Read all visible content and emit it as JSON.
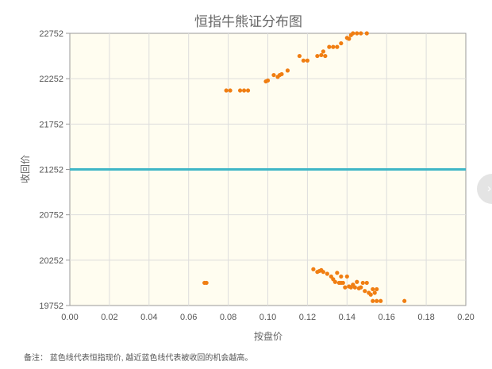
{
  "chart_data": {
    "type": "scatter",
    "title": "恒指牛熊证分布图",
    "xlabel": "按盘价",
    "ylabel": "收回价",
    "xlim": [
      0,
      0.2
    ],
    "ylim": [
      19752,
      22752
    ],
    "x_ticks": [
      "0.00",
      "0.02",
      "0.04",
      "0.06",
      "0.08",
      "0.10",
      "0.12",
      "0.14",
      "0.16",
      "0.18",
      "0.20"
    ],
    "y_ticks": [
      "19752",
      "20252",
      "20752",
      "21252",
      "21752",
      "22252",
      "22752"
    ],
    "grid": true,
    "reference_line": {
      "y": 21252,
      "color": "#3fb6c6"
    },
    "point_color": "#f07e12",
    "points": [
      [
        0.079,
        22122
      ],
      [
        0.081,
        22122
      ],
      [
        0.086,
        22122
      ],
      [
        0.088,
        22122
      ],
      [
        0.09,
        22122
      ],
      [
        0.099,
        22222
      ],
      [
        0.1,
        22232
      ],
      [
        0.103,
        22292
      ],
      [
        0.105,
        22272
      ],
      [
        0.106,
        22292
      ],
      [
        0.107,
        22302
      ],
      [
        0.11,
        22342
      ],
      [
        0.116,
        22502
      ],
      [
        0.118,
        22452
      ],
      [
        0.12,
        22452
      ],
      [
        0.125,
        22502
      ],
      [
        0.127,
        22512
      ],
      [
        0.128,
        22552
      ],
      [
        0.129,
        22502
      ],
      [
        0.131,
        22602
      ],
      [
        0.133,
        22602
      ],
      [
        0.135,
        22602
      ],
      [
        0.137,
        22642
      ],
      [
        0.14,
        22702
      ],
      [
        0.141,
        22692
      ],
      [
        0.142,
        22732
      ],
      [
        0.143,
        22752
      ],
      [
        0.145,
        22752
      ],
      [
        0.147,
        22752
      ],
      [
        0.15,
        22752
      ],
      [
        0.068,
        20002
      ],
      [
        0.069,
        20002
      ],
      [
        0.123,
        20152
      ],
      [
        0.125,
        20122
      ],
      [
        0.126,
        20132
      ],
      [
        0.127,
        20142
      ],
      [
        0.128,
        20122
      ],
      [
        0.13,
        20102
      ],
      [
        0.132,
        20072
      ],
      [
        0.133,
        20042
      ],
      [
        0.134,
        20012
      ],
      [
        0.135,
        20112
      ],
      [
        0.136,
        20002
      ],
      [
        0.137,
        20072
      ],
      [
        0.137,
        20002
      ],
      [
        0.138,
        20002
      ],
      [
        0.139,
        19952
      ],
      [
        0.14,
        20072
      ],
      [
        0.141,
        19962
      ],
      [
        0.142,
        19952
      ],
      [
        0.143,
        19982
      ],
      [
        0.144,
        19952
      ],
      [
        0.145,
        20012
      ],
      [
        0.146,
        19942
      ],
      [
        0.147,
        19952
      ],
      [
        0.148,
        20002
      ],
      [
        0.149,
        19912
      ],
      [
        0.15,
        20002
      ],
      [
        0.151,
        19892
      ],
      [
        0.152,
        19872
      ],
      [
        0.153,
        19932
      ],
      [
        0.153,
        19802
      ],
      [
        0.154,
        19892
      ],
      [
        0.155,
        19932
      ],
      [
        0.155,
        19802
      ],
      [
        0.157,
        19802
      ],
      [
        0.169,
        19802
      ]
    ]
  },
  "note": "备注：  蓝色线代表恒指现价, 越近蓝色线代表被收回的机会越高。",
  "side_button": {
    "icon": "chevron-right-icon",
    "glyph": "›"
  }
}
